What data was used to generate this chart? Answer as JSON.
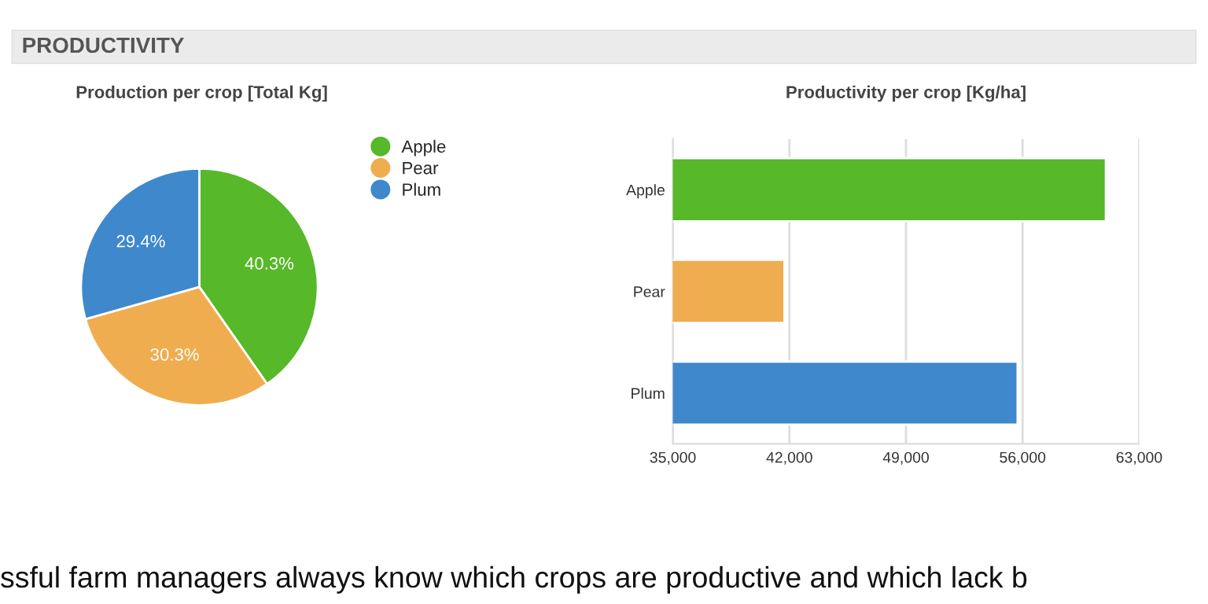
{
  "chart_data": [
    {
      "type": "pie",
      "title": "Production per crop [Total Kg]",
      "categories": [
        "Apple",
        "Pear",
        "Plum"
      ],
      "values": [
        40.3,
        30.3,
        29.4
      ],
      "colors": [
        "#57b82a",
        "#f0ad50",
        "#3f88cc"
      ],
      "value_labels": [
        "40.3%",
        "30.3%",
        "29.4%"
      ],
      "legend": "top right",
      "annotations": [
        "PRODUCTIVITY"
      ]
    },
    {
      "type": "bar",
      "orientation": "horizontal",
      "title": "Productivity per crop [Kg/ha]",
      "categories": [
        "Apple",
        "Pear",
        "Plum"
      ],
      "values": [
        61000,
        41700,
        55700
      ],
      "colors": [
        "#57b82a",
        "#f0ad50",
        "#3f88cc"
      ],
      "xlim": [
        35000,
        63000
      ],
      "xticks": [
        {
          "value": 35000,
          "label": "35,000"
        },
        {
          "value": 42000,
          "label": "42,000"
        },
        {
          "value": 49000,
          "label": "49,000"
        },
        {
          "value": 56000,
          "label": "56,000"
        },
        {
          "value": 63000,
          "label": "63,000"
        }
      ],
      "grid": "x",
      "annotations": [
        "ssful farm managers always know which crops are productive and which lack b"
      ]
    }
  ]
}
